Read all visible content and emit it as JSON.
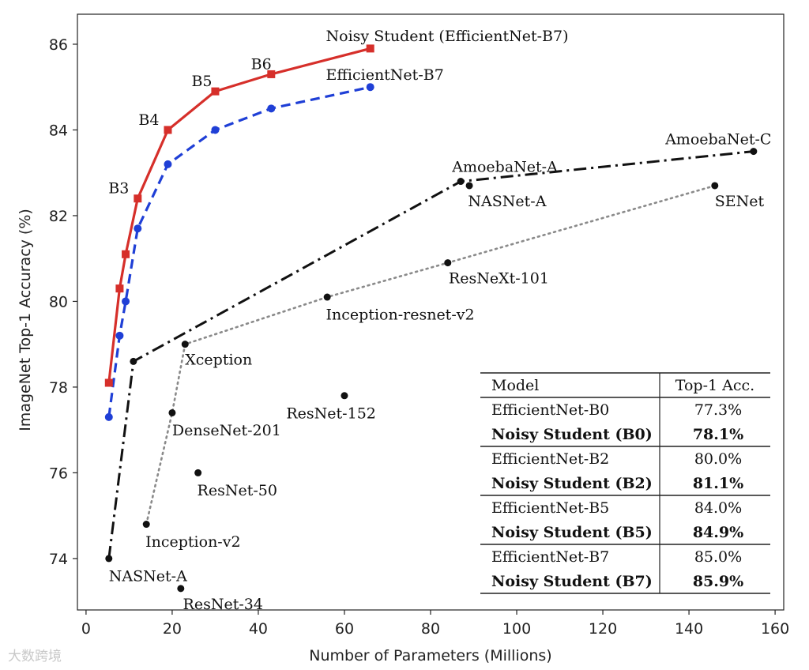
{
  "chart_data": {
    "type": "line",
    "xlabel": "Number of Parameters (Millions)",
    "ylabel": "ImageNet Top-1 Accuracy (%)",
    "xlim": [
      -2,
      162
    ],
    "ylim": [
      72.8,
      86.7
    ],
    "xticks": [
      0,
      20,
      40,
      60,
      80,
      100,
      120,
      140,
      160
    ],
    "yticks": [
      74,
      76,
      78,
      80,
      82,
      84,
      86
    ],
    "grid": false,
    "series": [
      {
        "name": "Noisy Student (EfficientNet-B7)",
        "color": "#d62f2a",
        "style": "solid",
        "marker": "square",
        "points": [
          [
            5.3,
            78.1
          ],
          [
            7.8,
            80.3
          ],
          [
            9.2,
            81.1
          ],
          [
            12,
            82.4
          ],
          [
            19,
            84.0
          ],
          [
            30,
            84.9
          ],
          [
            43,
            85.3
          ],
          [
            66,
            85.9
          ]
        ]
      },
      {
        "name": "EfficientNet-B7",
        "color": "#1f3fd6",
        "style": "dashed",
        "marker": "circle",
        "points": [
          [
            5.3,
            77.3
          ],
          [
            7.8,
            79.2
          ],
          [
            9.2,
            80.0
          ],
          [
            12,
            81.7
          ],
          [
            19,
            83.2
          ],
          [
            30,
            84.0
          ],
          [
            43,
            84.5
          ],
          [
            66,
            85.0
          ]
        ]
      },
      {
        "name": "",
        "color": "#111111",
        "style": "dashdot",
        "marker": "dot",
        "points": [
          [
            5.3,
            74.0
          ],
          [
            11,
            78.6
          ],
          [
            87,
            82.8
          ],
          [
            155,
            83.5
          ]
        ]
      },
      {
        "name": "",
        "color": "#8a8a8a",
        "style": "dotted",
        "marker": "dot",
        "points": [
          [
            14,
            74.8
          ],
          [
            20,
            77.4
          ],
          [
            23,
            79.0
          ],
          [
            56,
            80.1
          ],
          [
            84,
            80.9
          ],
          [
            146,
            82.7
          ]
        ]
      }
    ],
    "other_points": [
      [
        22,
        73.3
      ],
      [
        26,
        76.0
      ],
      [
        60,
        77.8
      ],
      [
        89,
        82.7
      ]
    ],
    "annotations": [
      {
        "text": "Noisy Student (EfficientNet-B7)",
        "x": 55.7,
        "y": 86.2
      },
      {
        "text": "EfficientNet-B7",
        "x": 55.7,
        "y": 85.3
      },
      {
        "text": "B6",
        "x": 38.3,
        "y": 85.55
      },
      {
        "text": "B5",
        "x": 24.5,
        "y": 85.15
      },
      {
        "text": "B4",
        "x": 12.2,
        "y": 84.25
      },
      {
        "text": "B3",
        "x": 5.2,
        "y": 82.65
      },
      {
        "text": "AmoebaNet-A",
        "x": 85.0,
        "y": 83.15
      },
      {
        "text": "AmoebaNet-C",
        "x": 134.5,
        "y": 83.8
      },
      {
        "text": "NASNet-A",
        "x": 88.7,
        "y": 82.35
      },
      {
        "text": "SENet",
        "x": 146.0,
        "y": 82.35
      },
      {
        "text": "ResNeXt-101",
        "x": 84.2,
        "y": 80.55
      },
      {
        "text": "Inception-resnet-v2",
        "x": 55.7,
        "y": 79.7
      },
      {
        "text": "Xception",
        "x": 23.0,
        "y": 78.65
      },
      {
        "text": "ResNet-152",
        "x": 46.5,
        "y": 77.4
      },
      {
        "text": "DenseNet-201",
        "x": 20.0,
        "y": 77.0
      },
      {
        "text": "ResNet-50",
        "x": 25.8,
        "y": 75.6
      },
      {
        "text": "Inception-v2",
        "x": 13.8,
        "y": 74.4
      },
      {
        "text": "NASNet-A",
        "x": 5.3,
        "y": 73.6
      },
      {
        "text": "ResNet-34",
        "x": 22.5,
        "y": 72.95
      }
    ]
  },
  "table": {
    "headers": [
      "Model",
      "Top-1 Acc."
    ],
    "groups": [
      [
        {
          "model": "EfficientNet-B0",
          "acc": "77.3%",
          "bold": false
        },
        {
          "model": "Noisy Student (B0)",
          "acc": "78.1%",
          "bold": true
        }
      ],
      [
        {
          "model": "EfficientNet-B2",
          "acc": "80.0%",
          "bold": false
        },
        {
          "model": "Noisy Student (B2)",
          "acc": "81.1%",
          "bold": true
        }
      ],
      [
        {
          "model": "EfficientNet-B5",
          "acc": "84.0%",
          "bold": false
        },
        {
          "model": "Noisy Student (B5)",
          "acc": "84.9%",
          "bold": true
        }
      ],
      [
        {
          "model": "EfficientNet-B7",
          "acc": "85.0%",
          "bold": false
        },
        {
          "model": "Noisy Student (B7)",
          "acc": "85.9%",
          "bold": true
        }
      ]
    ]
  },
  "watermark": "大数跨境"
}
